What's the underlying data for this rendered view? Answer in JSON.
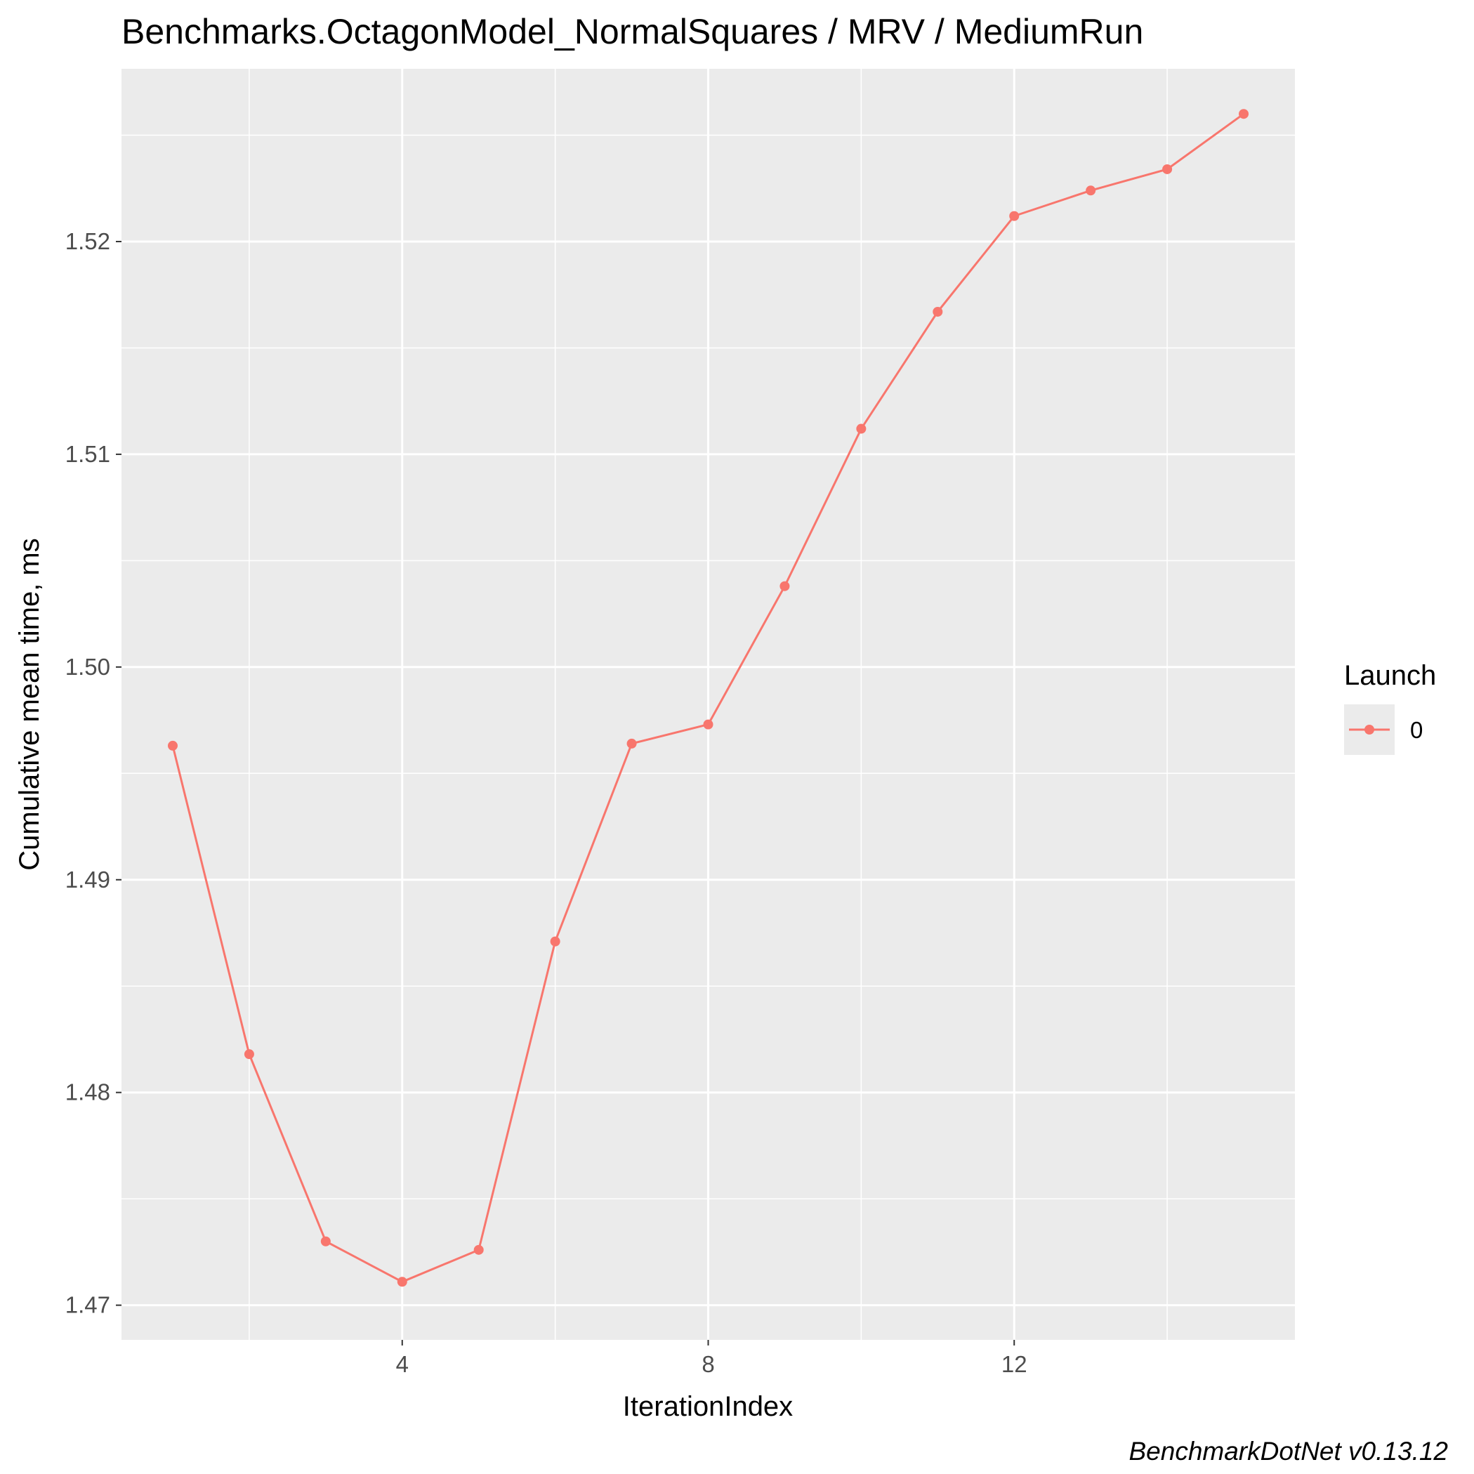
{
  "chart_data": {
    "type": "line",
    "title": "Benchmarks.OctagonModel_NormalSquares / MRV / MediumRun",
    "xlabel": "IterationIndex",
    "ylabel": "Cumulative mean time, ms",
    "caption": "BenchmarkDotNet v0.13.12",
    "xlim": [
      0.33,
      15.67
    ],
    "ylim": [
      1.46837,
      1.52812
    ],
    "x_ticks": [
      4,
      8,
      12
    ],
    "x_tick_labels": [
      "4",
      "8",
      "12"
    ],
    "y_ticks": [
      1.47,
      1.48,
      1.49,
      1.5,
      1.51,
      1.52
    ],
    "y_tick_labels": [
      "1.47",
      "1.48",
      "1.49",
      "1.50",
      "1.51",
      "1.52"
    ],
    "grid": true,
    "legend": {
      "title": "Launch",
      "position": "right"
    },
    "series": [
      {
        "name": "0",
        "color": "#F8766D",
        "x": [
          1,
          2,
          3,
          4,
          5,
          6,
          7,
          8,
          9,
          10,
          11,
          12,
          13,
          14,
          15
        ],
        "values": [
          1.4963,
          1.4818,
          1.473,
          1.4711,
          1.4726,
          1.4871,
          1.4964,
          1.4973,
          1.5038,
          1.5112,
          1.5167,
          1.5212,
          1.5224,
          1.5234,
          1.526
        ]
      }
    ]
  }
}
